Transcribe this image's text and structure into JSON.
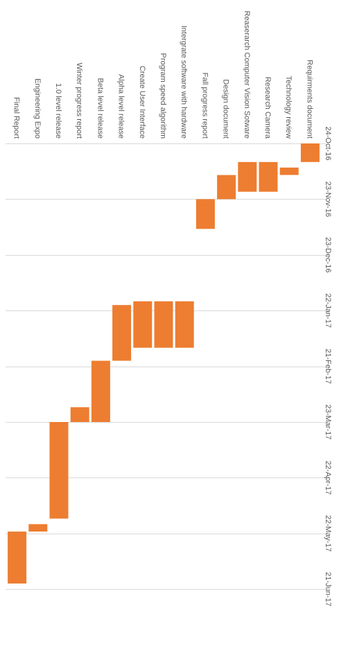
{
  "chart_data": {
    "type": "bar",
    "orientation": "rotated-90-clockwise",
    "categories": [
      "Requirments document",
      "Technology review",
      "Research Camera",
      "Reaserarch Computer Vision Sotware",
      "Design document",
      "Fall progress report",
      "Intergrate software with hardware",
      "Program speed algorithm",
      "Create User Interface",
      "Alpha level release",
      "Beta level release",
      "Winter progress report",
      "1.0 level release",
      "Engineering Expo",
      "Final Report"
    ],
    "series": [
      {
        "start": [
          "2016-10-24",
          "2016-11-06",
          "2016-11-03",
          "2016-11-03",
          "2016-11-10",
          "2016-11-23",
          "2017-01-17",
          "2017-01-17",
          "2017-01-17",
          "2017-01-19",
          "2017-02-18",
          "2017-03-15",
          "2017-03-23",
          "2017-05-17",
          "2017-05-21"
        ],
        "end": [
          "2016-11-03",
          "2016-11-10",
          "2016-11-19",
          "2016-11-19",
          "2016-11-23",
          "2016-12-09",
          "2017-02-11",
          "2017-02-11",
          "2017-02-11",
          "2017-02-18",
          "2017-03-23",
          "2017-03-23",
          "2017-05-14",
          "2017-05-21",
          "2017-06-18"
        ]
      }
    ],
    "x_ticks": [
      "24-Oct-16",
      "23-Nov-16",
      "23-Dec-16",
      "22-Jan-17",
      "21-Feb-17",
      "23-Mar-17",
      "22-Apr-17",
      "22-May-17",
      "21-Jun-17"
    ],
    "x_range": [
      "2016-10-24",
      "2017-06-21"
    ],
    "grid": true,
    "bar_color": "#ED7D31",
    "grid_color": "#D9D9D9"
  }
}
